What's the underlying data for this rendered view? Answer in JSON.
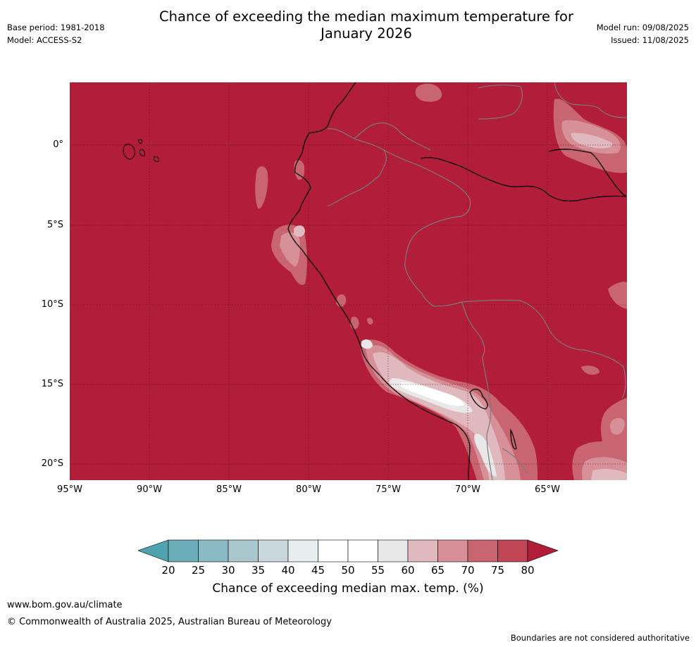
{
  "title_line1": "Chance of exceeding the median maximum temperature for",
  "title_line2": "January 2026",
  "meta_left": {
    "base_period": "Base period: 1981-2018",
    "model": "Model: ACCESS-S2"
  },
  "meta_right": {
    "model_run": "Model run: 09/08/2025",
    "issued": "Issued: 11/08/2025"
  },
  "map": {
    "lat_labels": [
      "0°",
      "5°S",
      "10°S",
      "15°S",
      "20°S"
    ],
    "lon_labels": [
      "95°W",
      "90°W",
      "85°W",
      "80°W",
      "75°W",
      "70°W",
      "65°W"
    ],
    "background_color": "#b21d39"
  },
  "colorbar": {
    "ticks": [
      "20",
      "25",
      "30",
      "35",
      "40",
      "45",
      "50",
      "55",
      "60",
      "65",
      "70",
      "75",
      "80"
    ],
    "colors": [
      "#6badb9",
      "#8bbac4",
      "#a9c8cd",
      "#c9d8dc",
      "#e8edef",
      "#ffffff",
      "#ffffff",
      "#e8e8e8",
      "#e0b9be",
      "#d78f98",
      "#c96570",
      "#c04555"
    ],
    "low_extend_color": "#4fa3b1",
    "high_extend_color": "#b21d39",
    "label": "Chance of exceeding median max. temp. (%)"
  },
  "footer": {
    "url": "www.bom.gov.au/climate",
    "copyright": "© Commonwealth of Australia 2025, Australian Bureau of Meteorology",
    "disclaimer": "Boundaries are not considered authoritative"
  }
}
